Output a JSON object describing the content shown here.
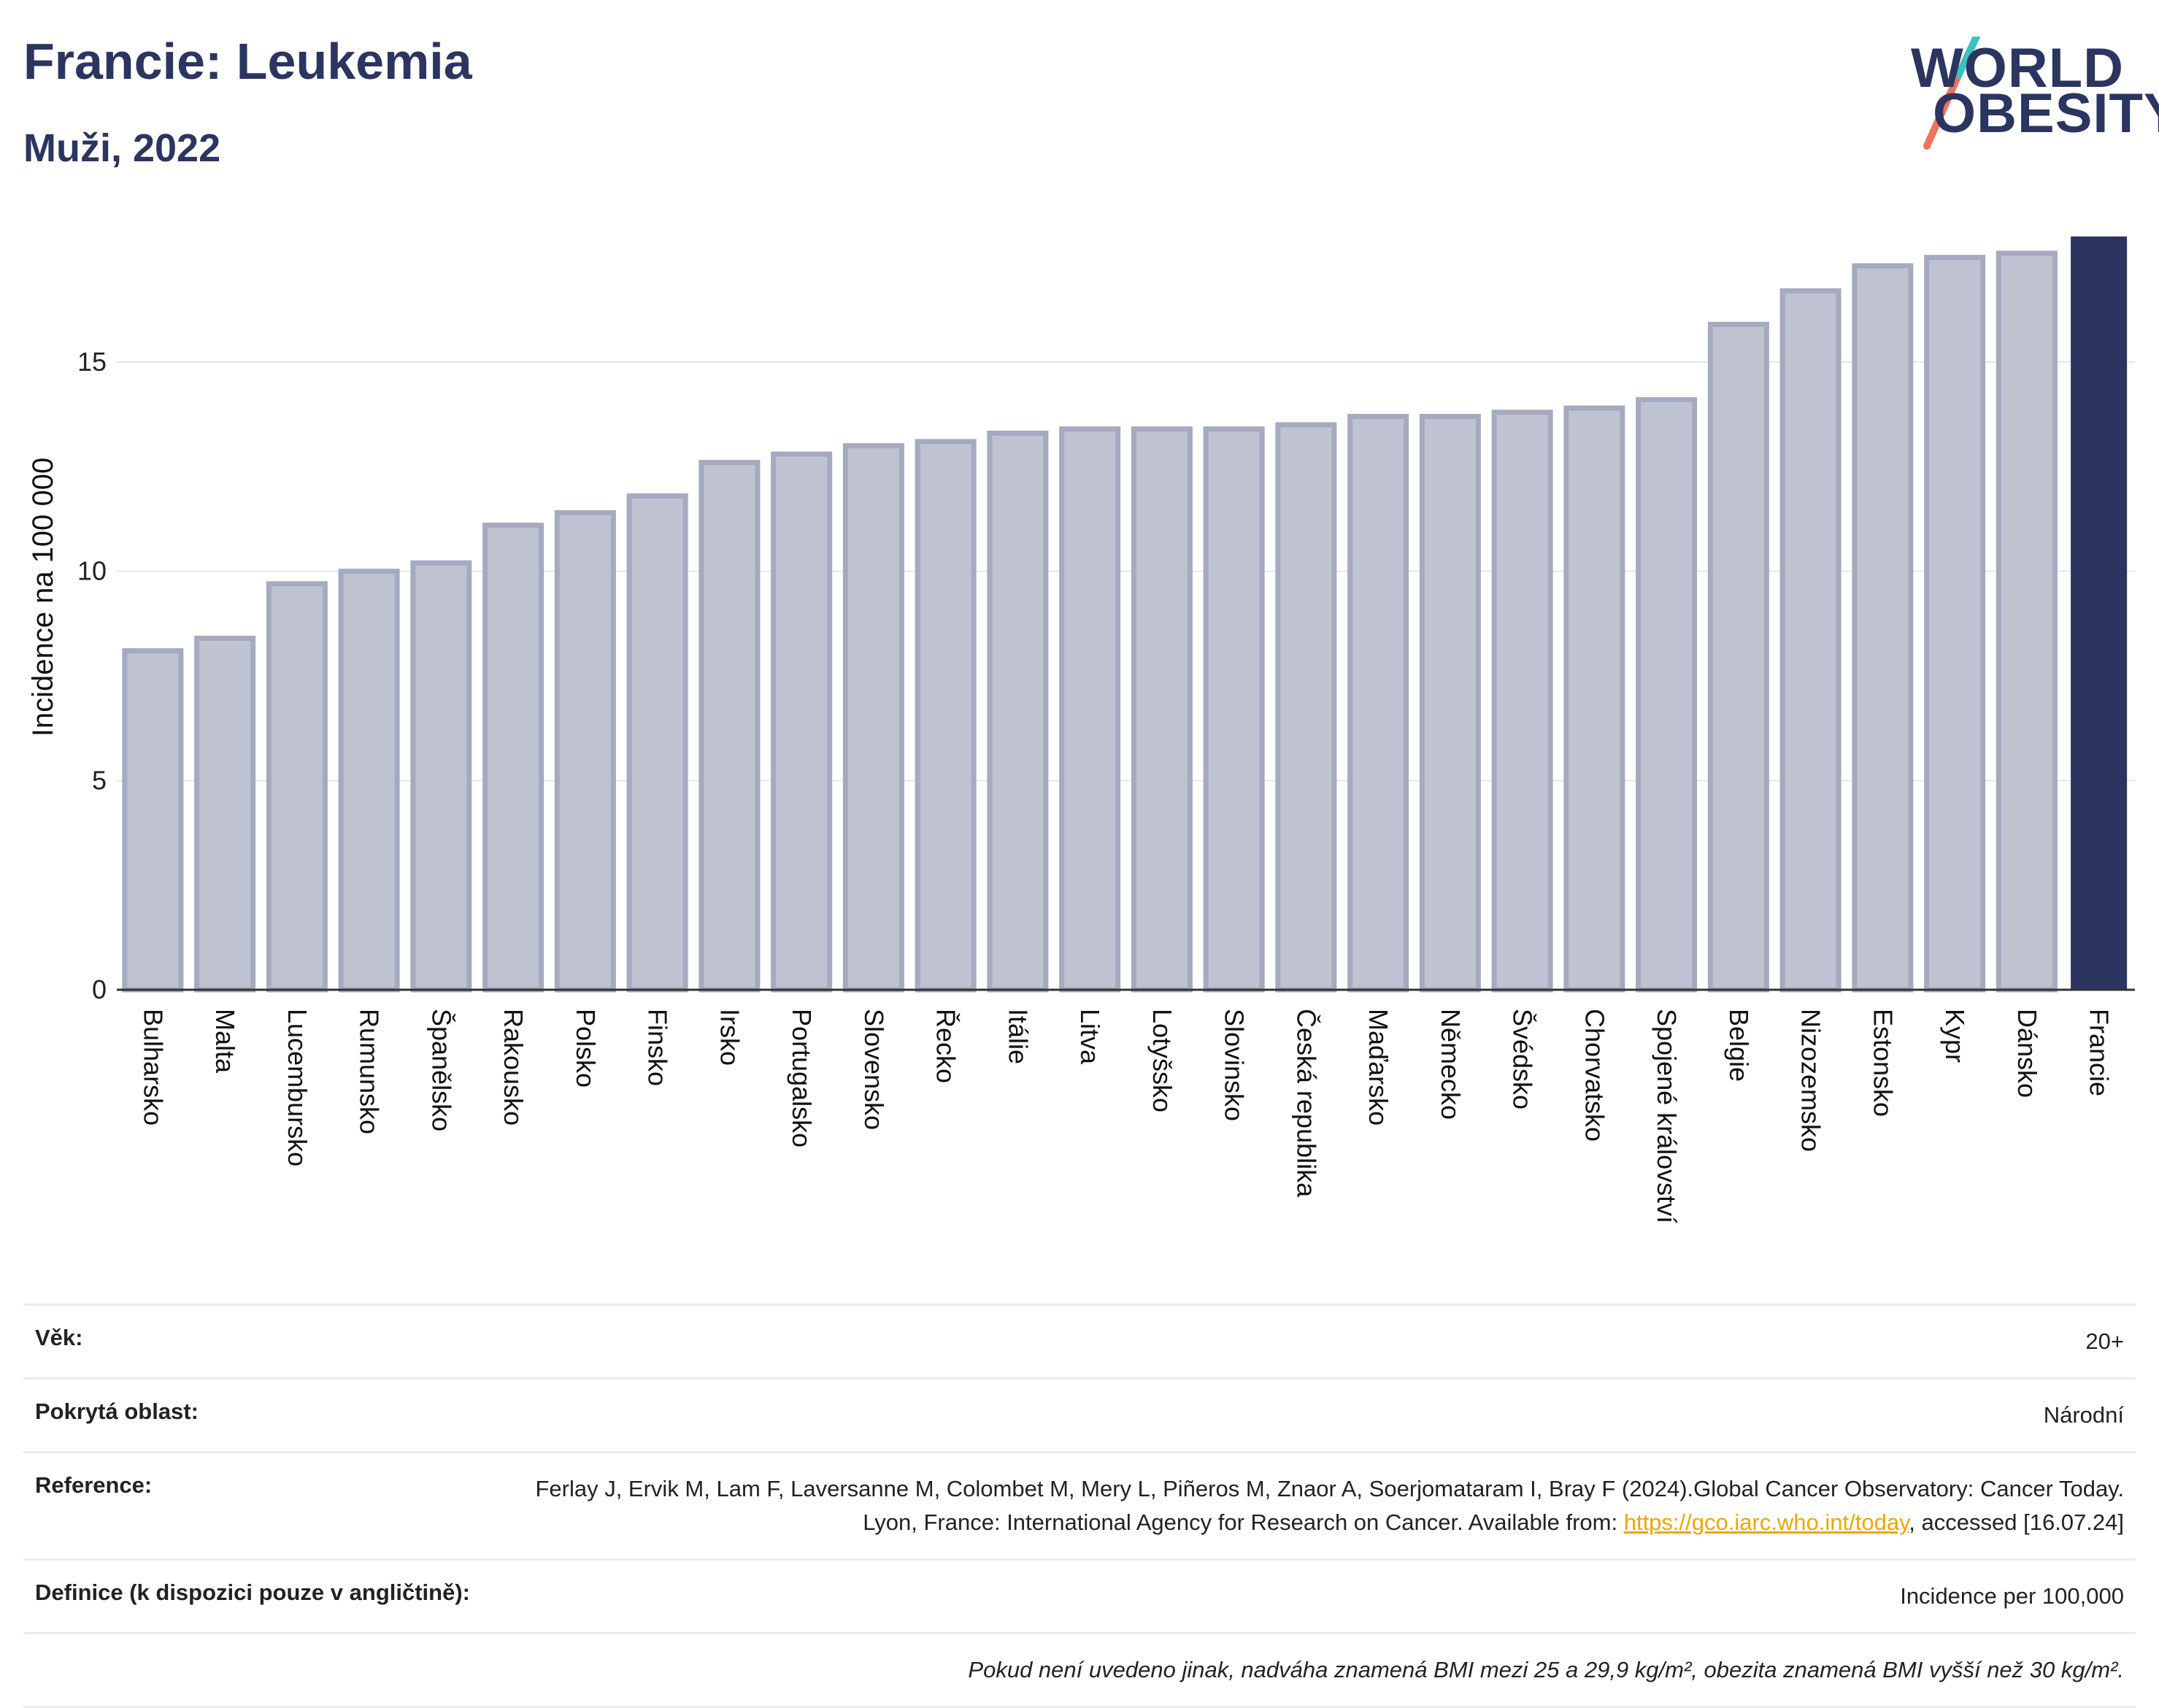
{
  "header": {
    "title": "Francie: Leukemia",
    "subtitle": "Muži, 2022"
  },
  "logo": {
    "line1": "WORLD",
    "line2": "OBESITY"
  },
  "colors": {
    "highlight": "#2b3560",
    "bar_fill": "#bfc3d1",
    "bar_stroke": "#a4aac0",
    "logo_slash_top": "#3cc1c0",
    "logo_slash_bottom": "#f0725c"
  },
  "chart_data": {
    "type": "bar",
    "title": "Francie: Leukemia",
    "subtitle": "Muži, 2022",
    "ylabel": "Incidence na 100 000",
    "xlabel": "",
    "ylim": [
      0,
      18
    ],
    "yticks": [
      0,
      5,
      10,
      15
    ],
    "grid": true,
    "highlight_category": "Francie",
    "categories": [
      "Bulharsko",
      "Malta",
      "Lucembursko",
      "Rumunsko",
      "Španělsko",
      "Rakousko",
      "Polsko",
      "Finsko",
      "Irsko",
      "Portugalsko",
      "Slovensko",
      "Řecko",
      "Itálie",
      "Litva",
      "Lotyšsko",
      "Slovinsko",
      "Česká republika",
      "Maďarsko",
      "Německo",
      "Švédsko",
      "Chorvatsko",
      "Spojené království",
      "Belgie",
      "Nizozemsko",
      "Estonsko",
      "Kypr",
      "Dánsko",
      "Francie"
    ],
    "values": [
      8.1,
      8.4,
      9.7,
      10.0,
      10.2,
      11.1,
      11.4,
      11.8,
      12.6,
      12.8,
      13.0,
      13.1,
      13.3,
      13.4,
      13.4,
      13.4,
      13.5,
      13.7,
      13.7,
      13.8,
      13.9,
      14.1,
      15.9,
      16.7,
      17.3,
      17.5,
      17.6,
      18.0
    ]
  },
  "info": {
    "age_label": "Věk:",
    "age_value": "20+",
    "area_label": "Pokrytá oblast:",
    "area_value": "Národní",
    "reference_label": "Reference:",
    "reference_text_1": "Ferlay J, Ervik M, Lam F, Laversanne M, Colombet M, Mery L, Piñeros M, Znaor A, Soerjomataram I, Bray F (2024).Global Cancer Observatory: Cancer Today. Lyon, France: International Agency for Research on Cancer. Available from: ",
    "reference_link": "https://gco.iarc.who.int/today",
    "reference_text_2": ", accessed [16.07.24]",
    "definition_label": "Definice (k dispozici pouze v angličtině):",
    "definition_value": "Incidence per 100,000",
    "note": "Pokud není uvedeno jinak, nadváha znamená BMI mezi 25 a 29,9 kg/m², obezita znamená BMI vyšší než 30 kg/m²."
  }
}
